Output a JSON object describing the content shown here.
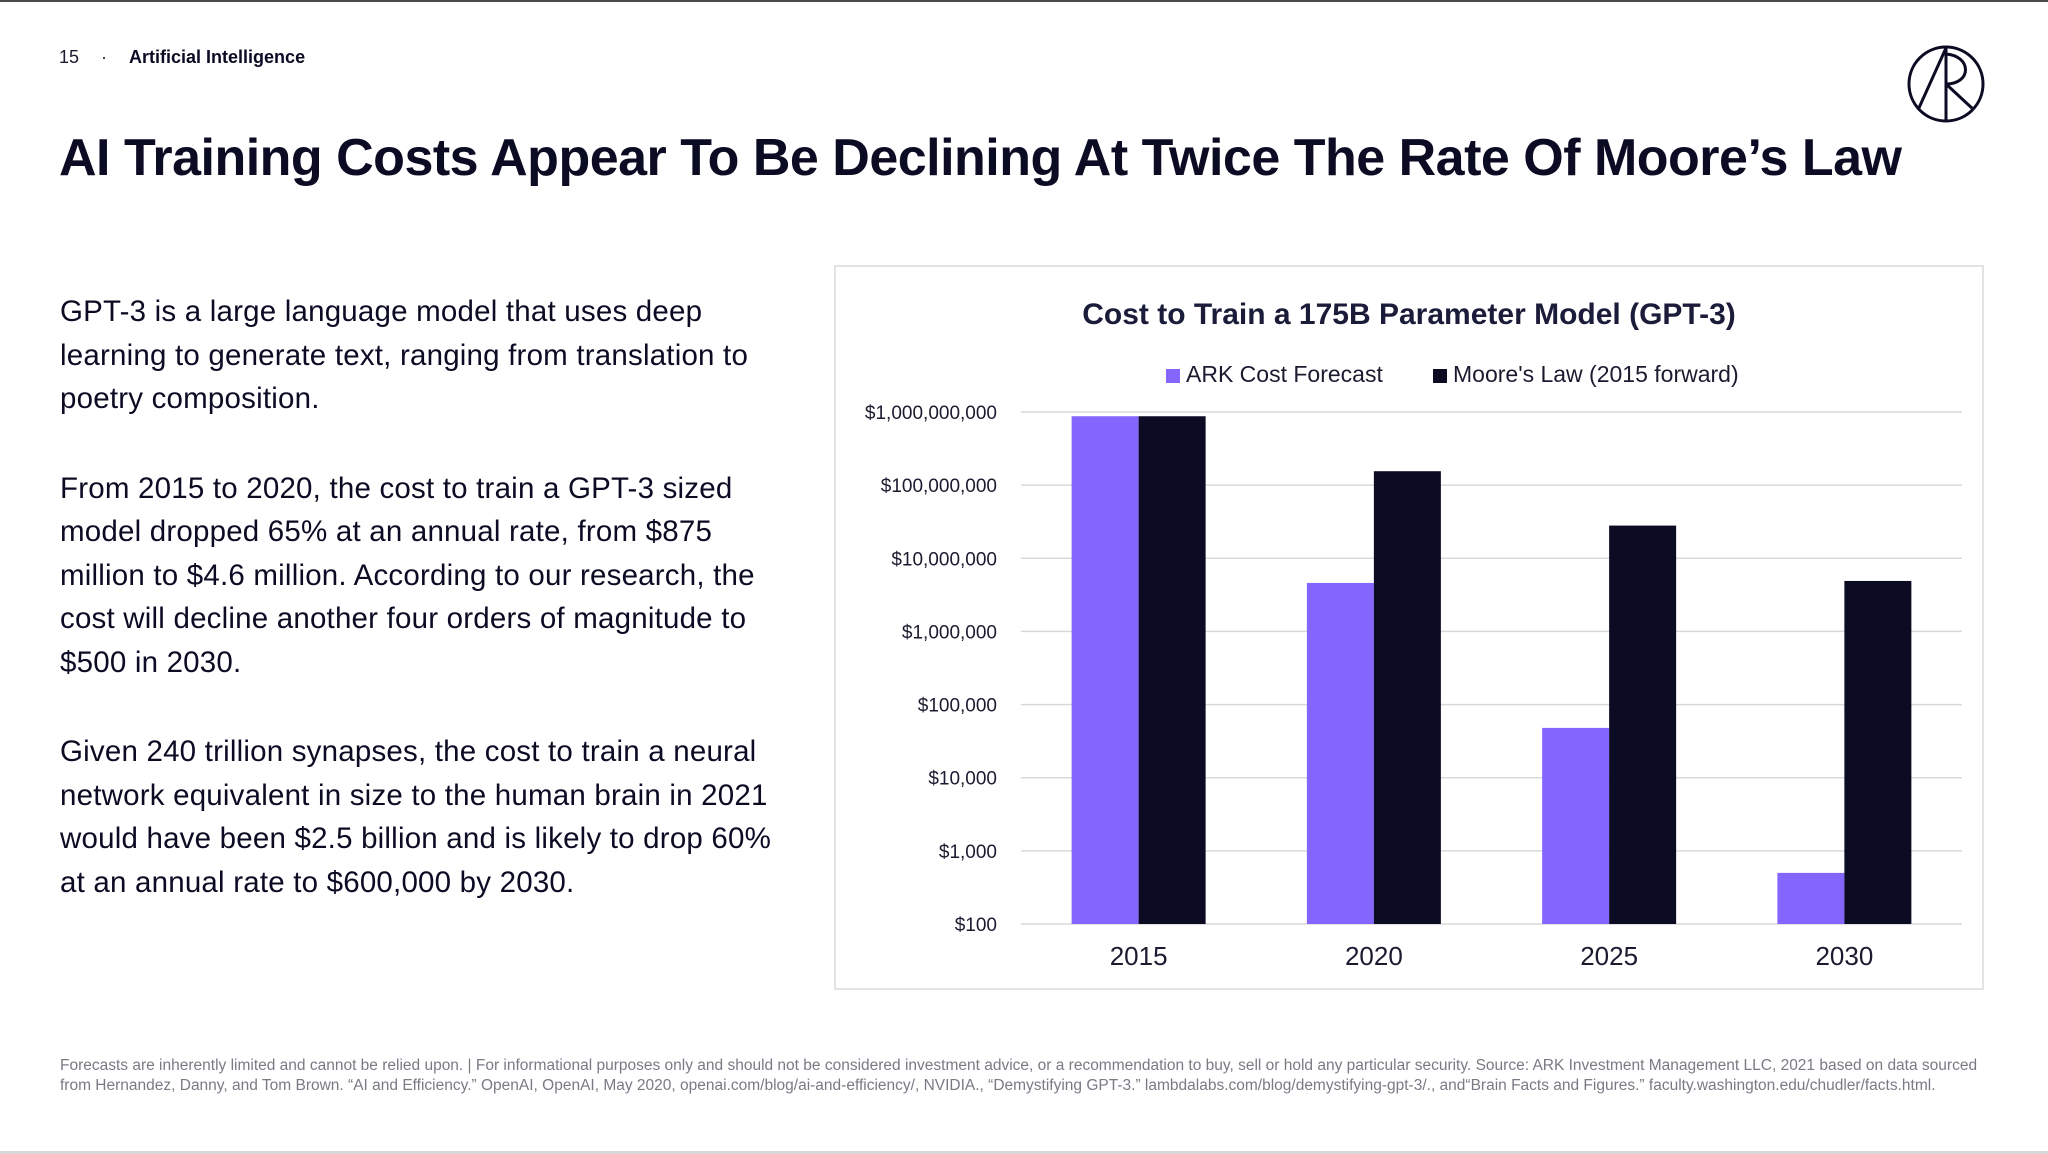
{
  "header": {
    "page_number": "15",
    "separator": "·",
    "section": "Artificial Intelligence"
  },
  "title": "AI Training Costs Appear To Be Declining At Twice The Rate Of Moore’s Law",
  "body": {
    "paragraphs": [
      "GPT-3 is a large language model that uses deep learning to generate text, ranging from translation to poetry composition.",
      "From 2015 to 2020, the cost to train a GPT-3 sized model dropped 65% at an annual rate, from $875 million to $4.6 million. According to our research, the cost will decline another four orders of magnitude to $500 in 2030.",
      "Given 240 trillion synapses, the cost to train a neural network equivalent in size to the human brain in 2021 would have been $2.5 billion and is likely to drop 60% at an annual rate to $600,000 by 2030."
    ]
  },
  "chart_data": {
    "type": "bar",
    "title": "Cost to Train a 175B Parameter Model (GPT-3)",
    "xlabel": "",
    "ylabel": "",
    "yscale": "log",
    "ylim": [
      100,
      1000000000
    ],
    "y_ticks": [
      100,
      1000,
      10000,
      100000,
      1000000,
      10000000,
      100000000,
      1000000000
    ],
    "y_tick_labels": [
      "$100",
      "$1,000",
      "$10,000",
      "$100,000",
      "$1,000,000",
      "$10,000,000",
      "$100,000,000",
      "$1,000,000,000"
    ],
    "categories": [
      "2015",
      "2020",
      "2025",
      "2030"
    ],
    "series": [
      {
        "name": "ARK Cost Forecast",
        "color": "#8466ff",
        "values": [
          875000000,
          4600000,
          48000,
          500
        ]
      },
      {
        "name": "Moore's Law (2015 forward)",
        "color": "#0b0b24",
        "values": [
          875000000,
          155000000,
          28000000,
          4900000
        ]
      }
    ],
    "legend": "top-center",
    "grid": true
  },
  "footnote": "Forecasts are inherently limited and cannot be relied upon. | For informational purposes only and should not be considered investment advice, or a recommendation to buy, sell or hold any particular security. Source: ARK Investment Management LLC, 2021 based on data sourced from Hernandez, Danny, and Tom Brown. “AI and Efficiency.” OpenAI, OpenAI, May 2020, openai.com/blog/ai-and-efficiency/, NVIDIA., “Demystifying GPT-3.” lambdalabs.com/blog/demystifying-gpt-3/., and“Brain Facts and Figures.” faculty.washington.edu/chudler/facts.html.",
  "logo": {
    "icon": "ark-logo-icon"
  }
}
